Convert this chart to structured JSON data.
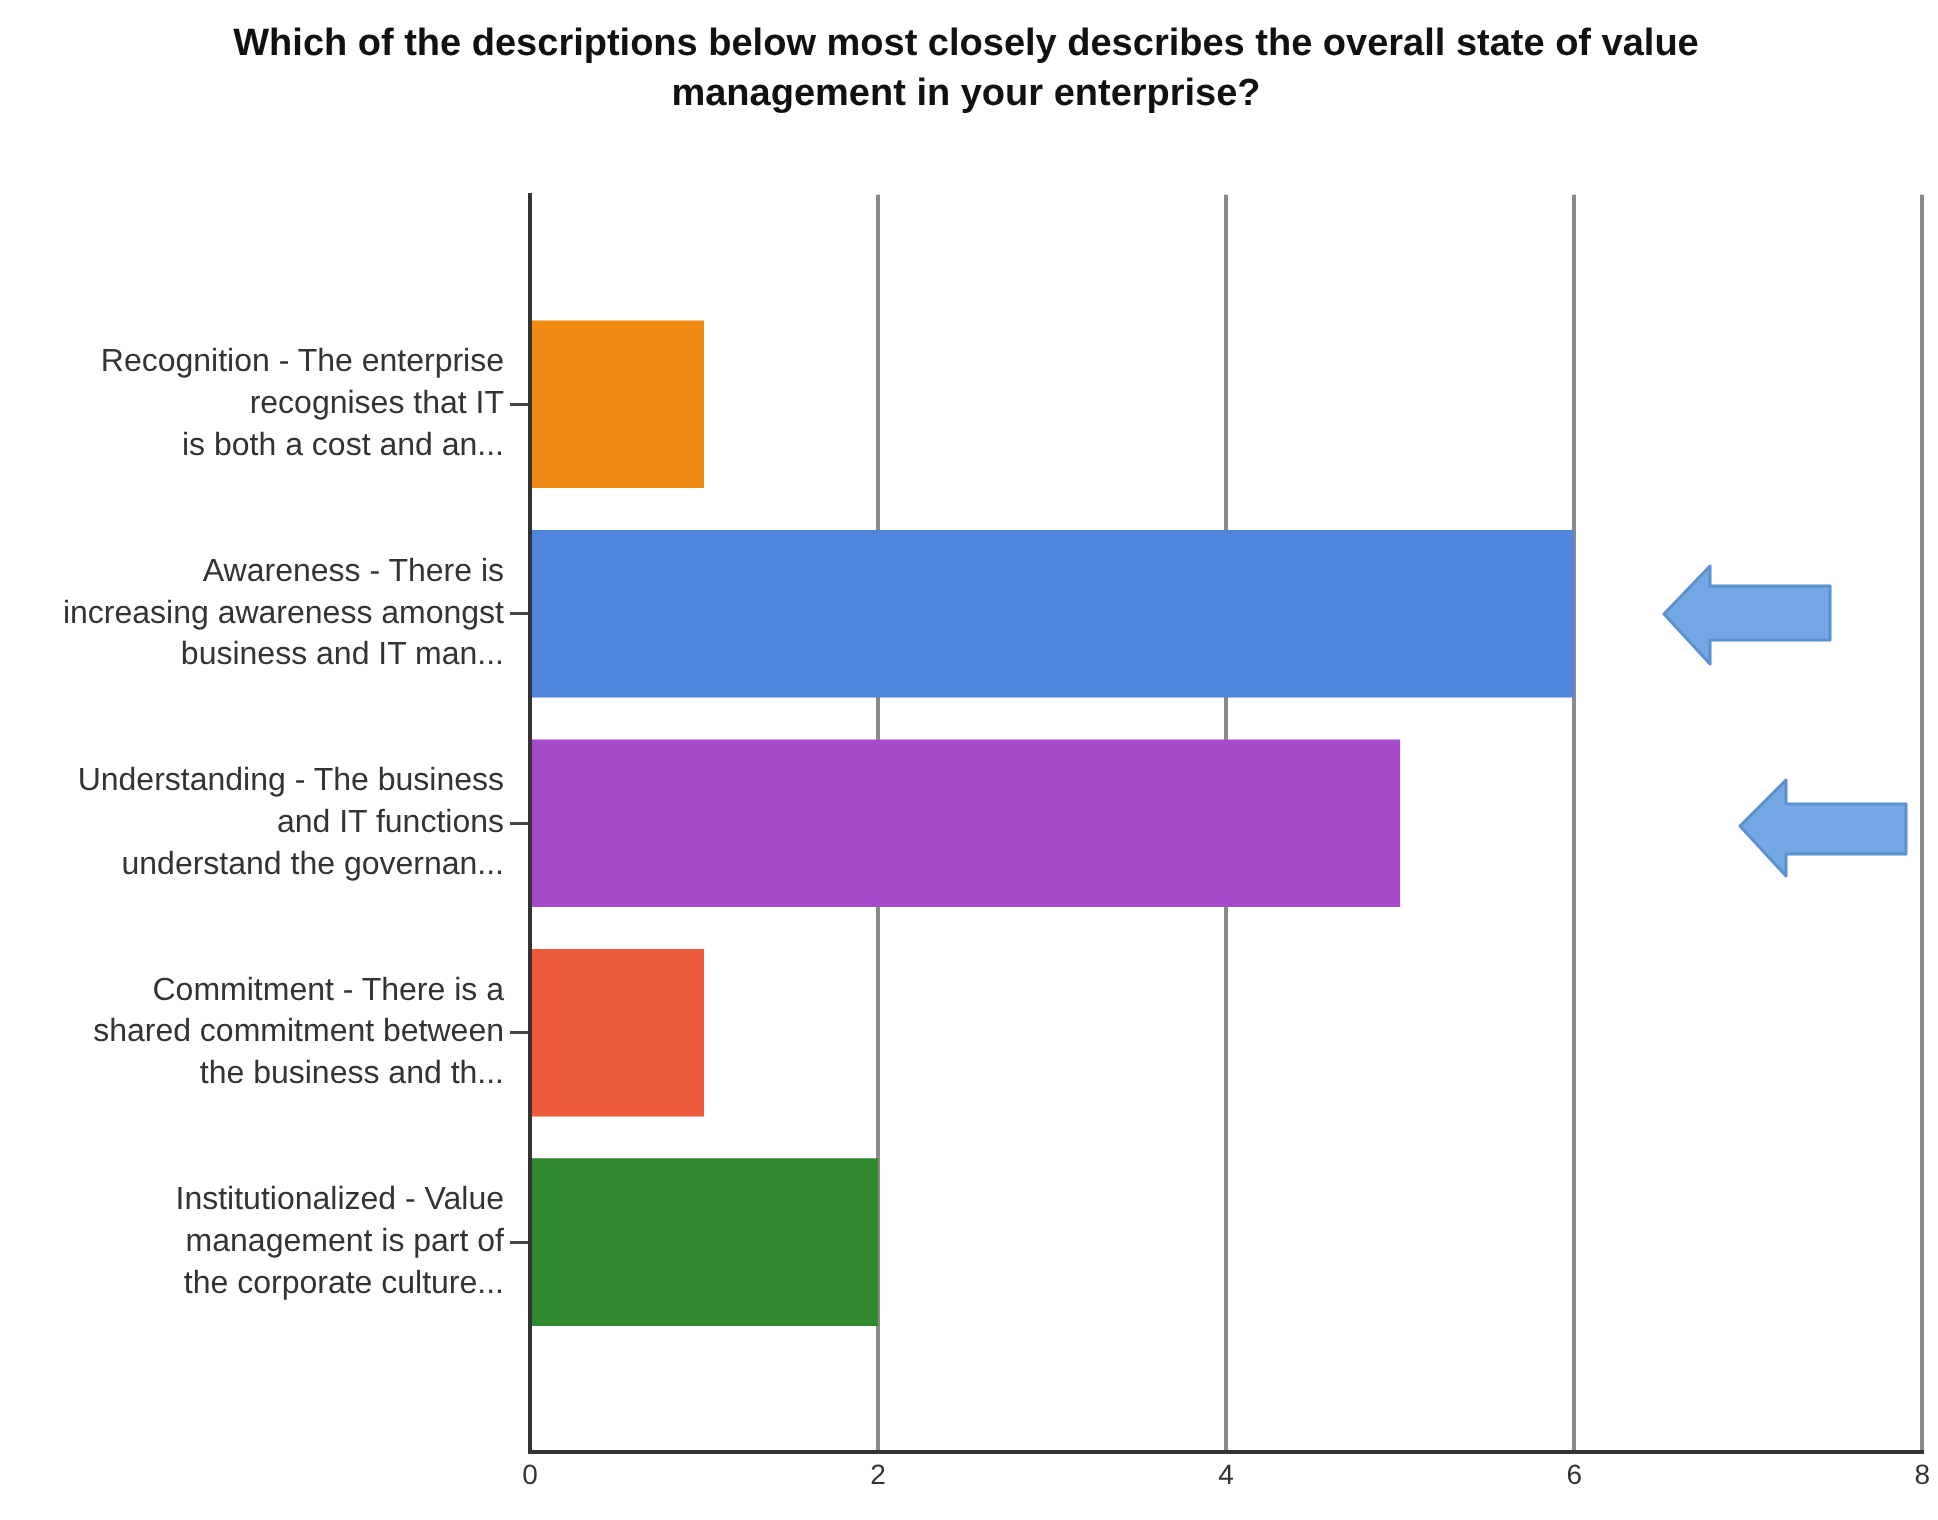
{
  "chart_data": {
    "type": "bar",
    "orientation": "horizontal",
    "title": "Which of the descriptions below most closely describes the overall state of value management in your enterprise?",
    "categories": [
      "Recognition - The enterprise\nrecognises that IT\nis both a cost and an...",
      "Awareness - There is\nincreasing awareness amongst\nbusiness and IT man...",
      "Understanding - The business\nand IT functions\nunderstand the governan...",
      "Commitment - There is a\nshared commitment between\nthe business and th...",
      "Institutionalized - Value\nmanagement is part of\nthe corporate culture..."
    ],
    "values": [
      1,
      6,
      5,
      1,
      2
    ],
    "colors": [
      "#f08a12",
      "#4f86dc",
      "#a84bcb",
      "#ee5b3c",
      "#2f8a2f"
    ],
    "xlim": [
      0,
      8
    ],
    "xticks": [
      0,
      2,
      4,
      6,
      8
    ],
    "grid": "x"
  }
}
